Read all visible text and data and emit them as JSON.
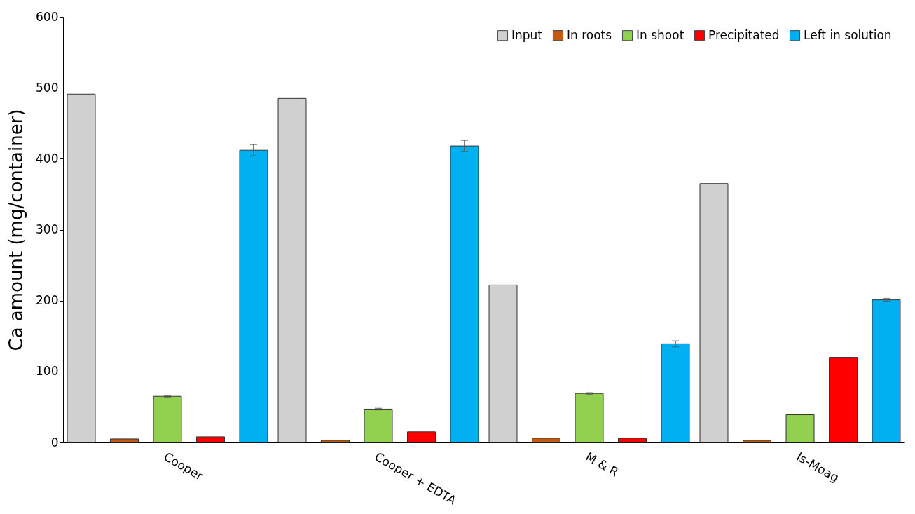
{
  "chart_data": {
    "type": "bar",
    "ylabel": "Ca amount (mg/container)",
    "categories": [
      "Cooper",
      "Cooper + EDTA",
      "M & R",
      "Is-Moag"
    ],
    "series": [
      {
        "name": "Input",
        "color": "#d0d0d0",
        "values": [
          491,
          485,
          222,
          365
        ]
      },
      {
        "name": "In roots",
        "color": "#c55a11",
        "values": [
          5,
          3,
          6,
          3
        ]
      },
      {
        "name": "In shoot",
        "color": "#92d050",
        "values": [
          65,
          47,
          69,
          39
        ],
        "errors": [
          1,
          1,
          1,
          null
        ]
      },
      {
        "name": "Precipitated",
        "color": "#ff0000",
        "values": [
          8,
          15,
          6,
          120
        ]
      },
      {
        "name": "Left in solution",
        "color": "#00b0f0",
        "values": [
          412,
          418,
          139,
          201
        ],
        "errors": [
          8,
          8,
          4,
          2
        ]
      }
    ],
    "ylim": [
      0,
      600
    ],
    "yticks": [
      0,
      100,
      200,
      300,
      400,
      500,
      600
    ],
    "grid": false,
    "legend": "top right"
  }
}
